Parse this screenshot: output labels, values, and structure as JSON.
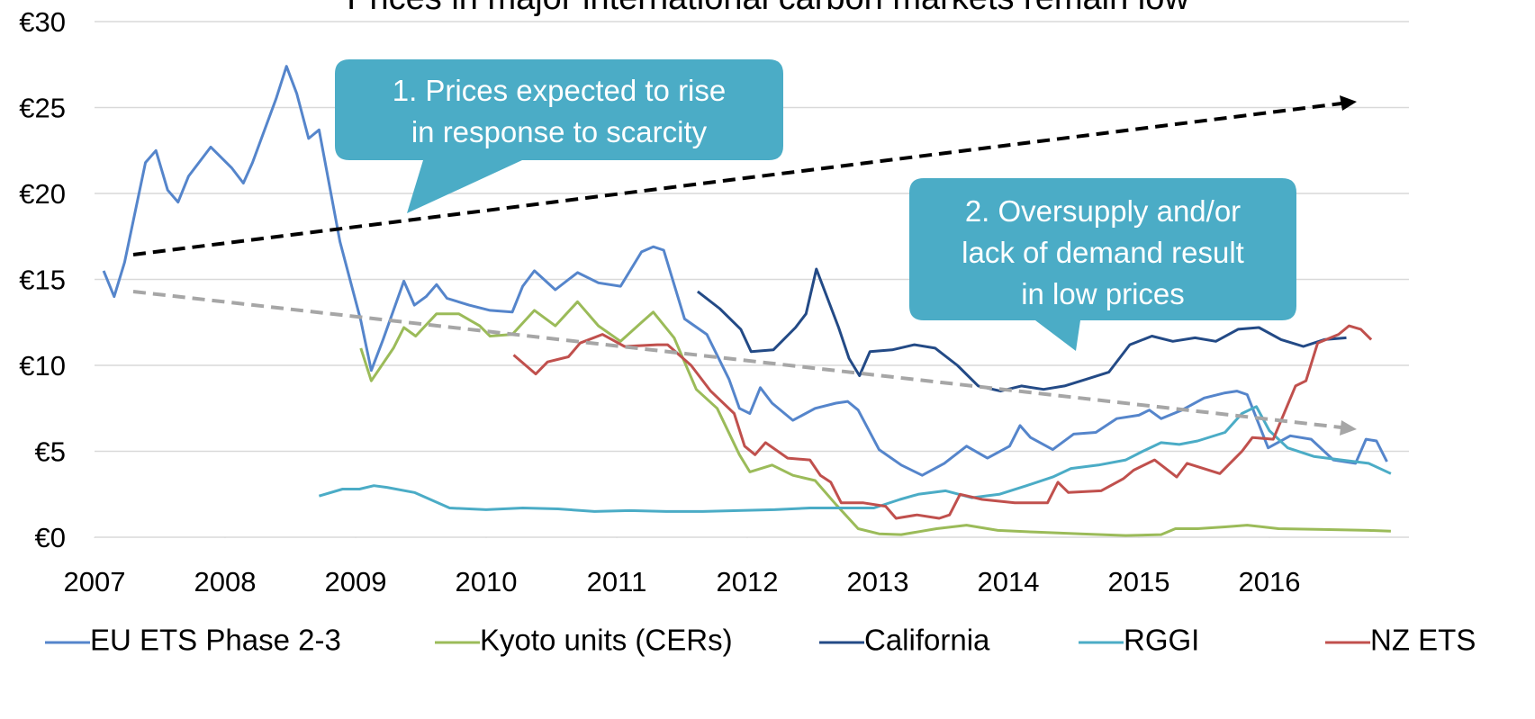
{
  "chart_data": {
    "type": "line",
    "title": "Prices in major international carbon markets remain low",
    "xlim": [
      2007,
      2017
    ],
    "xticks": [
      2007,
      2008,
      2009,
      2010,
      2011,
      2012,
      2013,
      2014,
      2015,
      2016
    ],
    "ylim": [
      0,
      30
    ],
    "yticks": [
      {
        "value": 0,
        "label": "€0"
      },
      {
        "value": 5,
        "label": "€5"
      },
      {
        "value": 10,
        "label": "€10"
      },
      {
        "value": 15,
        "label": "€15"
      },
      {
        "value": 20,
        "label": "€20"
      },
      {
        "value": 25,
        "label": "€25"
      },
      {
        "value": 30,
        "label": "€30"
      }
    ],
    "grid": true,
    "legend": "bottom",
    "annotations": [
      {
        "lines": [
          "1. Prices expected to rise",
          "in response to scarcity"
        ]
      },
      {
        "lines": [
          "2. Oversupply and/or",
          "lack of demand result",
          "in low prices"
        ]
      }
    ],
    "series": [
      {
        "name": "EU ETS Phase 2-3",
        "color": "#5585cb",
        "x": [
          2007.07,
          2007.15,
          2007.23,
          2007.39,
          2007.47,
          2007.56,
          2007.64,
          2007.72,
          2007.89,
          2008.05,
          2008.14,
          2008.21,
          2008.39,
          2008.47,
          2008.55,
          2008.64,
          2008.72,
          2008.88,
          2009.04,
          2009.12,
          2009.21,
          2009.37,
          2009.45,
          2009.54,
          2009.62,
          2009.7,
          2009.87,
          2010.03,
          2010.2,
          2010.28,
          2010.37,
          2010.53,
          2010.7,
          2010.86,
          2011.03,
          2011.19,
          2011.28,
          2011.36,
          2011.52,
          2011.69,
          2011.86,
          2011.94,
          2012.02,
          2012.1,
          2012.19,
          2012.35,
          2012.52,
          2012.68,
          2012.77,
          2012.85,
          2013.01,
          2013.18,
          2013.34,
          2013.51,
          2013.68,
          2013.84,
          2014.01,
          2014.09,
          2014.17,
          2014.34,
          2014.5,
          2014.67,
          2014.83,
          2015.0,
          2015.08,
          2015.17,
          2015.33,
          2015.5,
          2015.66,
          2015.75,
          2015.83,
          2015.99,
          2016.16,
          2016.32,
          2016.49,
          2016.66,
          2016.74,
          2016.82,
          2016.9
        ],
        "values": [
          15.5,
          14,
          16,
          21.8,
          22.5,
          20.2,
          19.5,
          21,
          22.7,
          21.5,
          20.6,
          21.8,
          25.5,
          27.4,
          25.8,
          23.2,
          23.7,
          17.2,
          12.6,
          9.7,
          11.5,
          14.9,
          13.5,
          14,
          14.7,
          13.9,
          13.5,
          13.2,
          13.1,
          14.6,
          15.5,
          14.4,
          15.4,
          14.8,
          14.6,
          16.6,
          16.9,
          16.7,
          12.7,
          11.8,
          9.2,
          7.5,
          7.2,
          8.7,
          7.8,
          6.8,
          7.5,
          7.8,
          7.9,
          7.4,
          5.1,
          4.2,
          3.6,
          4.3,
          5.3,
          4.6,
          5.3,
          6.5,
          5.8,
          5.1,
          6,
          6.1,
          6.9,
          7.1,
          7.4,
          6.9,
          7.4,
          8.1,
          8.4,
          8.5,
          8.3,
          5.2,
          5.9,
          5.7,
          4.5,
          4.3,
          5.7,
          5.6,
          4.4
        ]
      },
      {
        "name": "Kyoto units (CERs)",
        "color": "#9bbb59",
        "x": [
          2009.04,
          2009.12,
          2009.29,
          2009.37,
          2009.46,
          2009.62,
          2009.79,
          2009.95,
          2010.03,
          2010.2,
          2010.37,
          2010.53,
          2010.7,
          2010.86,
          2011.03,
          2011.19,
          2011.28,
          2011.44,
          2011.61,
          2011.77,
          2011.94,
          2012.02,
          2012.19,
          2012.35,
          2012.52,
          2012.68,
          2012.85,
          2013.01,
          2013.18,
          2013.45,
          2013.68,
          2013.92,
          2014.21,
          2014.55,
          2014.9,
          2015.17,
          2015.28,
          2015.45,
          2015.66,
          2015.83,
          2016.07,
          2016.41,
          2016.76,
          2016.93
        ],
        "values": [
          11,
          9.1,
          11,
          12.2,
          11.7,
          13,
          13,
          12.3,
          11.7,
          11.8,
          13.2,
          12.3,
          13.7,
          12.3,
          11.4,
          12.5,
          13.1,
          11.6,
          8.6,
          7.5,
          4.8,
          3.8,
          4.2,
          3.6,
          3.3,
          1.9,
          0.5,
          0.2,
          0.15,
          0.5,
          0.7,
          0.4,
          0.3,
          0.2,
          0.1,
          0.15,
          0.5,
          0.5,
          0.6,
          0.7,
          0.5,
          0.45,
          0.4,
          0.35
        ]
      },
      {
        "name": "California",
        "color": "#234a86",
        "x": [
          2011.62,
          2011.79,
          2011.95,
          2012.03,
          2012.2,
          2012.37,
          2012.45,
          2012.53,
          2012.7,
          2012.78,
          2012.86,
          2012.94,
          2013.11,
          2013.28,
          2013.44,
          2013.61,
          2013.77,
          2013.94,
          2014.1,
          2014.27,
          2014.43,
          2014.6,
          2014.77,
          2014.93,
          2015.1,
          2015.26,
          2015.43,
          2015.59,
          2015.76,
          2015.92,
          2016.09,
          2016.26,
          2016.42,
          2016.59
        ],
        "values": [
          14.3,
          13.3,
          12.1,
          10.8,
          10.9,
          12.2,
          13,
          15.6,
          12.2,
          10.4,
          9.4,
          10.8,
          10.9,
          11.2,
          11,
          10,
          8.8,
          8.5,
          8.8,
          8.6,
          8.8,
          9.2,
          9.6,
          11.2,
          11.7,
          11.4,
          11.6,
          11.4,
          12.1,
          12.2,
          11.5,
          11.1,
          11.5,
          11.6
        ]
      },
      {
        "name": "RGGI",
        "color": "#4bacc6",
        "x": [
          2008.72,
          2008.9,
          2009.03,
          2009.14,
          2009.24,
          2009.45,
          2009.72,
          2010.0,
          2010.28,
          2010.55,
          2010.83,
          2011.1,
          2011.38,
          2011.66,
          2011.93,
          2012.21,
          2012.48,
          2012.76,
          2012.97,
          2013.17,
          2013.31,
          2013.52,
          2013.72,
          2013.93,
          2014.14,
          2014.34,
          2014.48,
          2014.69,
          2014.9,
          2015.03,
          2015.17,
          2015.31,
          2015.45,
          2015.66,
          2015.79,
          2015.9,
          2016.0,
          2016.14,
          2016.34,
          2016.55,
          2016.76,
          2016.93
        ],
        "values": [
          2.4,
          2.8,
          2.8,
          3,
          2.9,
          2.6,
          1.7,
          1.6,
          1.7,
          1.65,
          1.5,
          1.55,
          1.5,
          1.5,
          1.55,
          1.6,
          1.7,
          1.7,
          1.7,
          2.2,
          2.5,
          2.7,
          2.3,
          2.5,
          3,
          3.5,
          4,
          4.2,
          4.5,
          5,
          5.5,
          5.4,
          5.6,
          6.1,
          7.2,
          7.6,
          6.2,
          5.2,
          4.7,
          4.5,
          4.3,
          3.7
        ]
      },
      {
        "name": "NZ ETS",
        "color": "#c0504d",
        "x": [
          2010.21,
          2010.38,
          2010.47,
          2010.63,
          2010.72,
          2010.89,
          2011.06,
          2011.31,
          2011.39,
          2011.57,
          2011.72,
          2011.9,
          2011.98,
          2012.06,
          2012.14,
          2012.31,
          2012.48,
          2012.56,
          2012.64,
          2012.72,
          2012.89,
          2013.06,
          2013.14,
          2013.3,
          2013.47,
          2013.55,
          2013.63,
          2013.8,
          2014.05,
          2014.3,
          2014.38,
          2014.46,
          2014.71,
          2014.88,
          2014.96,
          2015.12,
          2015.29,
          2015.37,
          2015.62,
          2015.79,
          2015.87,
          2016.03,
          2016.2,
          2016.28,
          2016.37,
          2016.53,
          2016.61,
          2016.7,
          2016.78
        ],
        "values": [
          10.6,
          9.5,
          10.2,
          10.5,
          11.3,
          11.8,
          11.1,
          11.2,
          11.2,
          10,
          8.5,
          7.2,
          5.3,
          4.8,
          5.5,
          4.6,
          4.5,
          3.6,
          3.2,
          2,
          2,
          1.8,
          1.1,
          1.3,
          1.1,
          1.3,
          2.5,
          2.2,
          2,
          2,
          3.2,
          2.6,
          2.7,
          3.4,
          3.9,
          4.5,
          3.5,
          4.3,
          3.7,
          5,
          5.8,
          5.7,
          8.8,
          9.1,
          11.3,
          11.8,
          12.3,
          12.1,
          11.5
        ]
      }
    ]
  }
}
